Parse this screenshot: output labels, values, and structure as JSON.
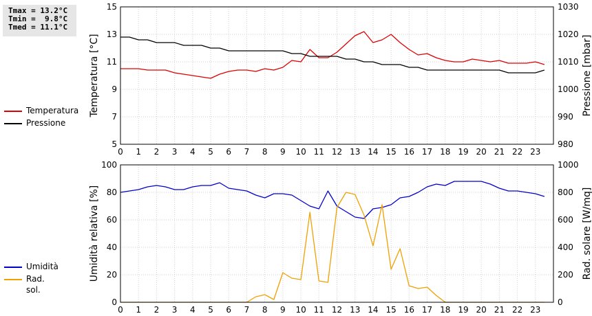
{
  "stats": {
    "tmax": "Tmax = 13.2°C",
    "tmin": "Tmin =  9.8°C",
    "tmed": "Tmed = 11.1°C"
  },
  "chart_data": [
    {
      "type": "line",
      "x": [
        0,
        0.5,
        1,
        1.5,
        2,
        2.5,
        3,
        3.5,
        4,
        4.5,
        5,
        5.5,
        6,
        6.5,
        7,
        7.5,
        8,
        8.5,
        9,
        9.5,
        10,
        10.5,
        11,
        11.5,
        12,
        12.5,
        13,
        13.5,
        14,
        14.5,
        15,
        15.5,
        16,
        16.5,
        17,
        17.5,
        18,
        18.5,
        19,
        19.5,
        20,
        20.5,
        21,
        21.5,
        22,
        22.5,
        23,
        23.5
      ],
      "xticks": [
        "0",
        "1",
        "2",
        "3",
        "4",
        "5",
        "6",
        "7",
        "8",
        "9",
        "10",
        "11",
        "12",
        "13",
        "14",
        "15",
        "16",
        "17",
        "18",
        "19",
        "20",
        "21",
        "22",
        "23"
      ],
      "left_axis": {
        "label": "Temperatura [°C]",
        "range": [
          5,
          15
        ],
        "ticks": [
          "5",
          "7",
          "9",
          "11",
          "13",
          "15"
        ]
      },
      "right_axis": {
        "label": "Pressione [mbar]",
        "range": [
          980,
          1030
        ],
        "ticks": [
          "980",
          "990",
          "1000",
          "1010",
          "1020",
          "1030"
        ]
      },
      "grid": true,
      "series": [
        {
          "name": "Temperatura",
          "axis": "left",
          "color": "#dd0000",
          "values": [
            10.5,
            10.5,
            10.5,
            10.4,
            10.4,
            10.4,
            10.2,
            10.1,
            10.0,
            9.9,
            9.8,
            10.1,
            10.3,
            10.4,
            10.4,
            10.3,
            10.5,
            10.4,
            10.6,
            11.1,
            11.0,
            11.9,
            11.3,
            11.3,
            11.7,
            12.3,
            12.9,
            13.2,
            12.4,
            12.6,
            13.0,
            12.4,
            11.9,
            11.5,
            11.6,
            11.3,
            11.1,
            11.0,
            11.0,
            11.2,
            11.1,
            11.0,
            11.1,
            10.9,
            10.9,
            10.9,
            11.0,
            10.8
          ]
        },
        {
          "name": "Pressione",
          "axis": "right",
          "color": "#000000",
          "values": [
            1019,
            1019,
            1018,
            1018,
            1017,
            1017,
            1017,
            1016,
            1016,
            1016,
            1015,
            1015,
            1014,
            1014,
            1014,
            1014,
            1014,
            1014,
            1014,
            1013,
            1013,
            1012,
            1012,
            1012,
            1012,
            1011,
            1011,
            1010,
            1010,
            1009,
            1009,
            1009,
            1008,
            1008,
            1007,
            1007,
            1007,
            1007,
            1007,
            1007,
            1007,
            1007,
            1007,
            1006,
            1006,
            1006,
            1006,
            1007
          ]
        }
      ]
    },
    {
      "type": "line",
      "x": [
        0,
        0.5,
        1,
        1.5,
        2,
        2.5,
        3,
        3.5,
        4,
        4.5,
        5,
        5.5,
        6,
        6.5,
        7,
        7.5,
        8,
        8.5,
        9,
        9.5,
        10,
        10.5,
        11,
        11.5,
        12,
        12.5,
        13,
        13.5,
        14,
        14.5,
        15,
        15.5,
        16,
        16.5,
        17,
        17.5,
        18,
        18.5,
        19,
        19.5,
        20,
        20.5,
        21,
        21.5,
        22,
        22.5,
        23,
        23.5
      ],
      "xticks": [
        "0",
        "1",
        "2",
        "3",
        "4",
        "5",
        "6",
        "7",
        "8",
        "9",
        "10",
        "11",
        "12",
        "13",
        "14",
        "15",
        "16",
        "17",
        "18",
        "19",
        "20",
        "21",
        "22",
        "23"
      ],
      "left_axis": {
        "label": "Umidità relativa [%]",
        "range": [
          0,
          100
        ],
        "ticks": [
          "0",
          "20",
          "40",
          "60",
          "80",
          "100"
        ]
      },
      "right_axis": {
        "label": "Rad. solare [W/mq]",
        "range": [
          0,
          1000
        ],
        "ticks": [
          "0",
          "200",
          "400",
          "600",
          "800",
          "1000"
        ]
      },
      "grid": true,
      "series": [
        {
          "name": "Umidità",
          "axis": "left",
          "color": "#0000cc",
          "values": [
            80,
            81,
            82,
            84,
            85,
            84,
            82,
            82,
            84,
            85,
            85,
            87,
            83,
            82,
            81,
            78,
            76,
            79,
            79,
            78,
            74,
            70,
            68,
            81,
            70,
            66,
            62,
            61,
            68,
            69,
            71,
            76,
            77,
            80,
            84,
            86,
            85,
            88,
            88,
            88,
            88,
            86,
            83,
            81,
            81,
            80,
            79,
            77
          ]
        },
        {
          "name": "Rad. sol.",
          "axis": "right",
          "color": "#f0a000",
          "values": [
            0,
            0,
            0,
            0,
            0,
            0,
            0,
            0,
            0,
            0,
            0,
            0,
            0,
            0,
            0,
            40,
            55,
            20,
            215,
            175,
            165,
            655,
            155,
            145,
            690,
            800,
            785,
            635,
            410,
            710,
            240,
            390,
            120,
            100,
            110,
            50,
            0,
            0,
            0,
            0,
            0,
            0,
            0,
            0,
            0,
            0,
            0,
            0
          ]
        }
      ]
    }
  ]
}
